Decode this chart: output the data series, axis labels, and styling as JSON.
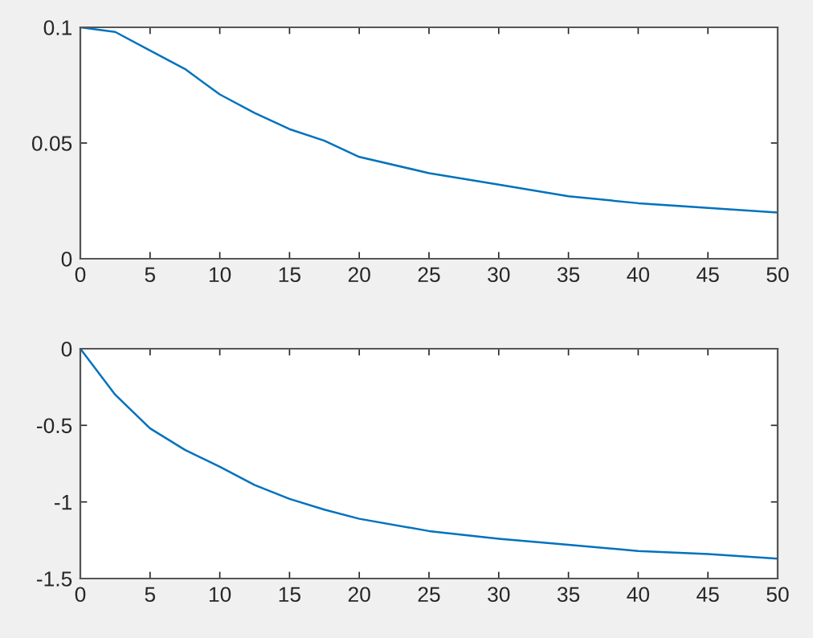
{
  "chart_data": [
    {
      "type": "line",
      "x": [
        0,
        2.5,
        5,
        7.5,
        10,
        12.5,
        15,
        17.5,
        20,
        25,
        30,
        35,
        40,
        45,
        50
      ],
      "series": [
        {
          "color": "#0072bd",
          "values": [
            0.1,
            0.098,
            0.09,
            0.082,
            0.071,
            0.063,
            0.056,
            0.051,
            0.044,
            0.037,
            0.032,
            0.027,
            0.024,
            0.022,
            0.02
          ]
        }
      ],
      "xlim": [
        0,
        50
      ],
      "ylim": [
        0,
        0.1
      ],
      "xticks": [
        0,
        5,
        10,
        15,
        20,
        25,
        30,
        35,
        40,
        45,
        50
      ],
      "yticks": [
        0,
        0.05,
        0.1
      ],
      "grid": false,
      "legend": false
    },
    {
      "type": "line",
      "x": [
        0,
        2.5,
        5,
        7.5,
        10,
        12.5,
        15,
        17.5,
        20,
        25,
        30,
        35,
        40,
        45,
        50
      ],
      "series": [
        {
          "color": "#0072bd",
          "values": [
            0,
            -0.3,
            -0.52,
            -0.66,
            -0.77,
            -0.89,
            -0.98,
            -1.05,
            -1.11,
            -1.19,
            -1.24,
            -1.28,
            -1.32,
            -1.34,
            -1.37
          ]
        }
      ],
      "xlim": [
        0,
        50
      ],
      "ylim": [
        -1.5,
        0
      ],
      "xticks": [
        0,
        5,
        10,
        15,
        20,
        25,
        30,
        35,
        40,
        45,
        50
      ],
      "yticks": [
        -1.5,
        -1,
        -0.5,
        0
      ],
      "grid": false,
      "legend": false
    }
  ]
}
